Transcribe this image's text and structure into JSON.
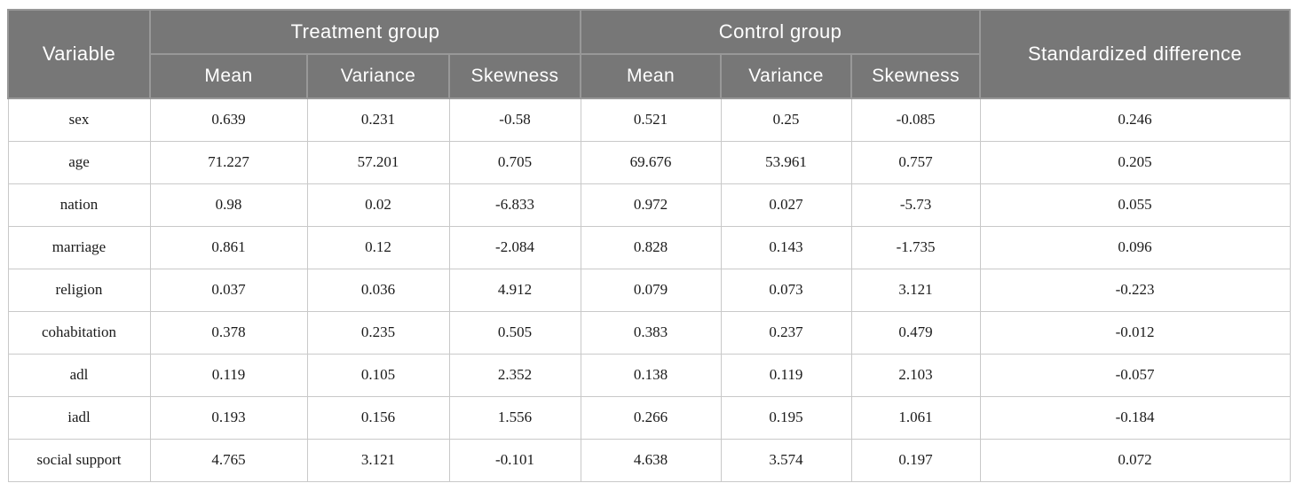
{
  "colors": {
    "header_bg": "#777777",
    "header_border": "#989898",
    "header_text": "#ffffff",
    "body_border": "#c9c9c9",
    "body_text": "#1a1a1a",
    "page_bg": "#ffffff"
  },
  "table": {
    "headers": {
      "variable": "Variable",
      "treatment_group": "Treatment group",
      "control_group": "Control group",
      "standardized_difference": "Standardized difference",
      "sub": [
        "Mean",
        "Variance",
        "Skewness",
        "Mean",
        "Variance",
        "Skewness"
      ]
    },
    "rows": [
      [
        "sex",
        "0.639",
        "0.231",
        "-0.58",
        "0.521",
        "0.25",
        "-0.085",
        "0.246"
      ],
      [
        "age",
        "71.227",
        "57.201",
        "0.705",
        "69.676",
        "53.961",
        "0.757",
        "0.205"
      ],
      [
        "nation",
        "0.98",
        "0.02",
        "-6.833",
        "0.972",
        "0.027",
        "-5.73",
        "0.055"
      ],
      [
        "marriage",
        "0.861",
        "0.12",
        "-2.084",
        "0.828",
        "0.143",
        "-1.735",
        "0.096"
      ],
      [
        "religion",
        "0.037",
        "0.036",
        "4.912",
        "0.079",
        "0.073",
        "3.121",
        "-0.223"
      ],
      [
        "cohabitation",
        "0.378",
        "0.235",
        "0.505",
        "0.383",
        "0.237",
        "0.479",
        "-0.012"
      ],
      [
        "adl",
        "0.119",
        "0.105",
        "2.352",
        "0.138",
        "0.119",
        "2.103",
        "-0.057"
      ],
      [
        "iadl",
        "0.193",
        "0.156",
        "1.556",
        "0.266",
        "0.195",
        "1.061",
        "-0.184"
      ],
      [
        "social support",
        "4.765",
        "3.121",
        "-0.101",
        "4.638",
        "3.574",
        "0.197",
        "0.072"
      ]
    ]
  }
}
